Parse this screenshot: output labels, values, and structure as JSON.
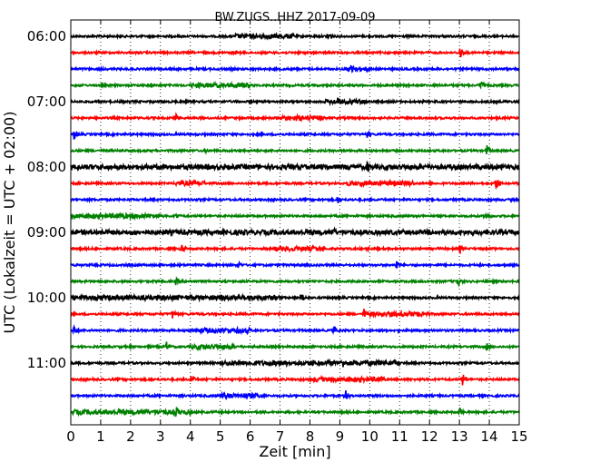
{
  "chart_data": {
    "type": "line",
    "title": "BW.ZUGS..HHZ 2017-09-09",
    "xlabel": "Zeit  [min]",
    "ylabel": "UTC (Lokalzeit = UTC + 02:00)",
    "xlim": [
      0,
      15
    ],
    "x_ticks": [
      "0",
      "1",
      "2",
      "3",
      "4",
      "5",
      "6",
      "7",
      "8",
      "9",
      "10",
      "11",
      "12",
      "13",
      "14",
      "15"
    ],
    "y_ticks": [
      {
        "label": "06:00",
        "trace": 0
      },
      {
        "label": "07:00",
        "trace": 4
      },
      {
        "label": "08:00",
        "trace": 8
      },
      {
        "label": "09:00",
        "trace": 12
      },
      {
        "label": "10:00",
        "trace": 16
      },
      {
        "label": "11:00",
        "trace": 20
      }
    ],
    "grid": "x dotted",
    "trace_interval_min": 15,
    "colors": [
      "#000000",
      "#ff0000",
      "#0000ff",
      "#008000"
    ],
    "traces": [
      {
        "start": "06:00",
        "events": [
          {
            "t": 8.6,
            "a": 8
          }
        ],
        "noisy": [
          [
            5.5,
            7.5
          ]
        ]
      },
      {
        "start": "06:15",
        "events": [
          {
            "t": 13.0,
            "a": 9
          },
          {
            "t": 5.5,
            "a": 3
          }
        ],
        "noisy": []
      },
      {
        "start": "06:30",
        "events": [
          {
            "t": 9.4,
            "a": 9
          }
        ],
        "noisy": [
          [
            9.2,
            10.0
          ]
        ]
      },
      {
        "start": "06:45",
        "events": [
          {
            "t": 13.7,
            "a": 7
          }
        ],
        "noisy": [
          [
            4.0,
            6.0
          ]
        ]
      },
      {
        "start": "07:00",
        "events": [
          {
            "t": 8.9,
            "a": 7
          }
        ],
        "noisy": [
          [
            8.5,
            10.0
          ]
        ]
      },
      {
        "start": "07:15",
        "events": [
          {
            "t": 3.5,
            "a": 6
          }
        ],
        "noisy": [
          [
            7.0,
            8.5
          ]
        ]
      },
      {
        "start": "07:30",
        "events": [
          {
            "t": 0.1,
            "a": 8
          },
          {
            "t": 9.9,
            "a": 6
          }
        ],
        "noisy": []
      },
      {
        "start": "07:45",
        "events": [
          {
            "t": 13.9,
            "a": 8
          },
          {
            "t": 4.5,
            "a": 3
          }
        ],
        "noisy": []
      },
      {
        "start": "08:00",
        "events": [
          {
            "t": 9.9,
            "a": 8
          }
        ],
        "noisy": [
          [
            0.0,
            15.0
          ]
        ]
      },
      {
        "start": "08:15",
        "events": [
          {
            "t": 14.2,
            "a": 9
          }
        ],
        "noisy": [
          [
            9.2,
            11.5
          ],
          [
            3.5,
            4.5
          ]
        ]
      },
      {
        "start": "08:30",
        "events": [
          {
            "t": 8.9,
            "a": 6
          }
        ],
        "noisy": []
      },
      {
        "start": "08:45",
        "events": [
          {
            "t": 3.5,
            "a": 5
          },
          {
            "t": 13.9,
            "a": 7
          }
        ],
        "noisy": [
          [
            0.0,
            3.0
          ]
        ]
      },
      {
        "start": "09:00",
        "events": [
          {
            "t": 8.8,
            "a": 7
          }
        ],
        "noisy": [
          [
            0.0,
            15.0
          ]
        ]
      },
      {
        "start": "09:15",
        "events": [
          {
            "t": 3.7,
            "a": 6
          },
          {
            "t": 9.9,
            "a": 5
          },
          {
            "t": 13.0,
            "a": 6
          }
        ],
        "noisy": [
          [
            6.8,
            8.5
          ]
        ]
      },
      {
        "start": "09:30",
        "events": [
          {
            "t": 5.6,
            "a": 5
          },
          {
            "t": 10.9,
            "a": 6
          }
        ],
        "noisy": []
      },
      {
        "start": "09:45",
        "events": [
          {
            "t": 3.5,
            "a": 5
          },
          {
            "t": 12.9,
            "a": 8
          }
        ],
        "noisy": []
      },
      {
        "start": "10:00",
        "events": [
          {
            "t": 7.7,
            "a": 7
          }
        ],
        "noisy": [
          [
            0.0,
            7.0
          ]
        ]
      },
      {
        "start": "10:15",
        "events": [
          {
            "t": 3.4,
            "a": 6
          },
          {
            "t": 9.8,
            "a": 7
          }
        ],
        "noisy": [
          [
            10.0,
            12.0
          ]
        ]
      },
      {
        "start": "10:30",
        "events": [
          {
            "t": 0.1,
            "a": 8
          },
          {
            "t": 8.8,
            "a": 6
          }
        ],
        "noisy": [
          [
            4.0,
            6.0
          ]
        ]
      },
      {
        "start": "10:45",
        "events": [
          {
            "t": 3.2,
            "a": 6
          },
          {
            "t": 13.9,
            "a": 5
          }
        ],
        "noisy": [
          [
            4.0,
            5.5
          ]
        ]
      },
      {
        "start": "11:00",
        "events": [
          {
            "t": 9.1,
            "a": 7
          }
        ],
        "noisy": [
          [
            5.0,
            11.0
          ]
        ]
      },
      {
        "start": "11:15",
        "events": [
          {
            "t": 4.0,
            "a": 7
          },
          {
            "t": 13.1,
            "a": 9
          }
        ],
        "noisy": [
          [
            8.0,
            10.5
          ]
        ]
      },
      {
        "start": "11:30",
        "events": [
          {
            "t": 9.2,
            "a": 6
          }
        ],
        "noisy": [
          [
            5.0,
            6.5
          ]
        ]
      },
      {
        "start": "11:45",
        "events": [
          {
            "t": 3.5,
            "a": 8
          },
          {
            "t": 13.0,
            "a": 6
          }
        ],
        "noisy": [
          [
            0.0,
            4.0
          ]
        ]
      }
    ]
  }
}
